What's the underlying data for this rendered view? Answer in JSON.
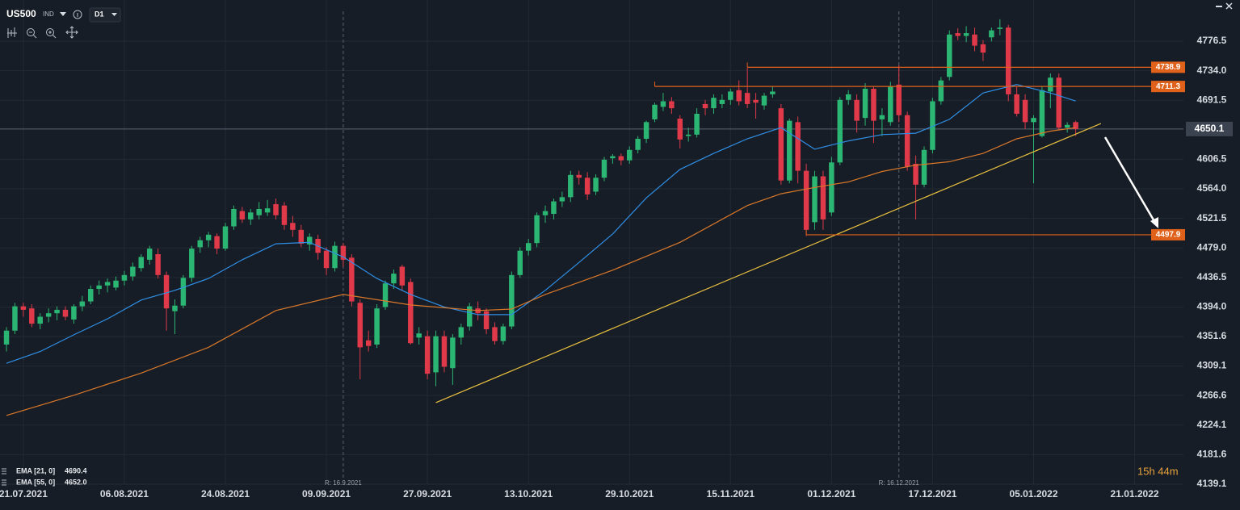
{
  "header": {
    "symbol": "US500",
    "kind": "IND",
    "timeframe": "D1"
  },
  "chart_data": {
    "type": "candlestick",
    "up_color": "#2bb673",
    "down_color": "#e0394a",
    "xlim": [
      -0.77,
      139.8
    ],
    "xticks": [
      {
        "value": 2,
        "label": "21.07.2021"
      },
      {
        "value": 14,
        "label": "06.08.2021"
      },
      {
        "value": 26,
        "label": "24.08.2021"
      },
      {
        "value": 38,
        "label": "09.09.2021"
      },
      {
        "value": 50,
        "label": "27.09.2021"
      },
      {
        "value": 62,
        "label": "13.10.2021"
      },
      {
        "value": 74,
        "label": "29.10.2021"
      },
      {
        "value": 86,
        "label": "15.11.2021"
      },
      {
        "value": 98,
        "label": "01.12.2021"
      },
      {
        "value": 110,
        "label": "17.12.2021"
      },
      {
        "value": 122,
        "label": "05.01.2022"
      },
      {
        "value": 134,
        "label": "21.01.2022"
      }
    ],
    "ylim": [
      4139.1,
      4835.7
    ],
    "yticks": [
      4776.5,
      {
        "value": 4734,
        "label": "4734.0"
      },
      4691.5,
      4606.5,
      {
        "value": 4564,
        "label": "4564.0"
      },
      4521.5,
      {
        "value": 4479,
        "label": "4479.0"
      },
      4436.5,
      {
        "value": 4394,
        "label": "4394.0"
      },
      4351.6,
      4309.1,
      4266.6,
      4224.1,
      4181.6,
      4139.1
    ],
    "grid": true,
    "candles": [
      [
        4340,
        4365,
        4330,
        4360
      ],
      [
        4360,
        4400,
        4355,
        4395
      ],
      [
        4395,
        4400,
        4380,
        4390
      ],
      [
        4392,
        4398,
        4365,
        4370
      ],
      [
        4370,
        4385,
        4362,
        4380
      ],
      [
        4380,
        4392,
        4372,
        4385
      ],
      [
        4385,
        4395,
        4375,
        4390
      ],
      [
        4390,
        4395,
        4375,
        4380
      ],
      [
        4376,
        4398,
        4370,
        4395
      ],
      [
        4395,
        4410,
        4388,
        4402
      ],
      [
        4402,
        4425,
        4398,
        4420
      ],
      [
        4420,
        4432,
        4412,
        4425
      ],
      [
        4425,
        4435,
        4415,
        4430
      ],
      [
        4422,
        4438,
        4418,
        4432
      ],
      [
        4432,
        4446,
        4425,
        4440
      ],
      [
        4438,
        4458,
        4432,
        4452
      ],
      [
        4450,
        4470,
        4445,
        4466
      ],
      [
        4462,
        4482,
        4455,
        4478
      ],
      [
        4470,
        4478,
        4435,
        4440
      ],
      [
        4440,
        4445,
        4360,
        4392
      ],
      [
        4388,
        4405,
        4355,
        4396
      ],
      [
        4396,
        4440,
        4392,
        4436
      ],
      [
        4436,
        4482,
        4430,
        4478
      ],
      [
        4480,
        4495,
        4472,
        4490
      ],
      [
        4490,
        4502,
        4480,
        4498
      ],
      [
        4496,
        4500,
        4470,
        4478
      ],
      [
        4478,
        4515,
        4475,
        4510
      ],
      [
        4510,
        4540,
        4505,
        4535
      ],
      [
        4532,
        4538,
        4515,
        4520
      ],
      [
        4520,
        4535,
        4512,
        4530
      ],
      [
        4526,
        4545,
        4520,
        4535
      ],
      [
        4530,
        4548,
        4525,
        4536
      ],
      [
        4542,
        4550,
        4520,
        4526
      ],
      [
        4540,
        4545,
        4505,
        4512
      ],
      [
        4515,
        4525,
        4495,
        4505
      ],
      [
        4505,
        4512,
        4480,
        4485
      ],
      [
        4484,
        4500,
        4475,
        4495
      ],
      [
        4492,
        4498,
        4462,
        4472
      ],
      [
        4475,
        4480,
        4440,
        4450
      ],
      [
        4450,
        4488,
        4445,
        4482
      ],
      [
        4482,
        4486,
        4452,
        4462
      ],
      [
        4465,
        4470,
        4395,
        4402
      ],
      [
        4400,
        4405,
        4290,
        4336
      ],
      [
        4346,
        4360,
        4330,
        4338
      ],
      [
        4340,
        4398,
        4335,
        4392
      ],
      [
        4394,
        4432,
        4390,
        4428
      ],
      [
        4428,
        4448,
        4420,
        4442
      ],
      [
        4452,
        4455,
        4418,
        4425
      ],
      [
        4430,
        4435,
        4340,
        4342
      ],
      [
        4350,
        4365,
        4340,
        4356
      ],
      [
        4352,
        4360,
        4290,
        4298
      ],
      [
        4300,
        4360,
        4280,
        4352
      ],
      [
        4352,
        4360,
        4300,
        4308
      ],
      [
        4306,
        4355,
        4282,
        4350
      ],
      [
        4350,
        4370,
        4340,
        4365
      ],
      [
        4366,
        4400,
        4360,
        4395
      ],
      [
        4392,
        4402,
        4375,
        4385
      ],
      [
        4388,
        4392,
        4355,
        4362
      ],
      [
        4365,
        4372,
        4340,
        4345
      ],
      [
        4345,
        4370,
        4340,
        4366
      ],
      [
        4366,
        4445,
        4362,
        4440
      ],
      [
        4440,
        4480,
        4436,
        4475
      ],
      [
        4475,
        4492,
        4468,
        4486
      ],
      [
        4486,
        4530,
        4480,
        4526
      ],
      [
        4526,
        4540,
        4515,
        4532
      ],
      [
        4528,
        4550,
        4520,
        4546
      ],
      [
        4546,
        4560,
        4538,
        4552
      ],
      [
        4552,
        4590,
        4545,
        4584
      ],
      [
        4584,
        4590,
        4570,
        4580
      ],
      [
        4580,
        4588,
        4548,
        4556
      ],
      [
        4560,
        4585,
        4555,
        4580
      ],
      [
        4580,
        4610,
        4575,
        4606
      ],
      [
        4608,
        4614,
        4600,
        4611
      ],
      [
        4611,
        4615,
        4598,
        4605
      ],
      [
        4605,
        4625,
        4600,
        4620
      ],
      [
        4620,
        4640,
        4615,
        4636
      ],
      [
        4636,
        4662,
        4630,
        4660
      ],
      [
        4664,
        4688,
        4660,
        4685
      ],
      [
        4682,
        4702,
        4676,
        4690
      ],
      [
        4690,
        4696,
        4672,
        4680
      ],
      [
        4665,
        4670,
        4622,
        4635
      ],
      [
        4640,
        4652,
        4632,
        4642
      ],
      [
        4642,
        4680,
        4638,
        4672
      ],
      [
        4686,
        4692,
        4670,
        4680
      ],
      [
        4680,
        4700,
        4672,
        4695
      ],
      [
        4686,
        4700,
        4680,
        4692
      ],
      [
        4692,
        4708,
        4685,
        4704
      ],
      [
        4706,
        4720,
        4684,
        4690
      ],
      [
        4702,
        4738,
        4680,
        4686
      ],
      [
        4692,
        4702,
        4665,
        4688
      ],
      [
        4684,
        4702,
        4678,
        4698
      ],
      [
        4700,
        4712,
        4695,
        4704
      ],
      [
        4680,
        4686,
        4570,
        4576
      ],
      [
        4576,
        4665,
        4572,
        4662
      ],
      [
        4660,
        4668,
        4572,
        4590
      ],
      [
        4590,
        4600,
        4496,
        4505
      ],
      [
        4516,
        4590,
        4505,
        4582
      ],
      [
        4582,
        4590,
        4505,
        4520
      ],
      [
        4530,
        4610,
        4525,
        4602
      ],
      [
        4602,
        4696,
        4598,
        4692
      ],
      [
        4692,
        4706,
        4685,
        4700
      ],
      [
        4692,
        4700,
        4645,
        4662
      ],
      [
        4666,
        4716,
        4655,
        4708
      ],
      [
        4708,
        4712,
        4630,
        4662
      ],
      [
        4664,
        4680,
        4640,
        4670
      ],
      [
        4660,
        4718,
        4655,
        4712
      ],
      [
        4714,
        4742,
        4660,
        4670
      ],
      [
        4670,
        4675,
        4590,
        4596
      ],
      [
        4600,
        4612,
        4520,
        4570
      ],
      [
        4570,
        4625,
        4566,
        4620
      ],
      [
        4620,
        4695,
        4615,
        4690
      ],
      [
        4690,
        4725,
        4685,
        4720
      ],
      [
        4725,
        4792,
        4720,
        4786
      ],
      [
        4788,
        4795,
        4778,
        4784
      ],
      [
        4784,
        4798,
        4775,
        4788
      ],
      [
        4786,
        4796,
        4762,
        4770
      ],
      [
        4772,
        4778,
        4748,
        4760
      ],
      [
        4782,
        4796,
        4776,
        4792
      ],
      [
        4794,
        4808,
        4785,
        4796
      ],
      [
        4796,
        4800,
        4690,
        4700
      ],
      [
        4700,
        4712,
        4668,
        4672
      ],
      [
        4692,
        4700,
        4650,
        4660
      ],
      [
        4660,
        4670,
        4572,
        4666
      ],
      [
        4640,
        4712,
        4638,
        4706
      ],
      [
        4704,
        4730,
        4680,
        4724
      ],
      [
        4724,
        4730,
        4648,
        4652
      ],
      [
        4652,
        4660,
        4645,
        4656
      ],
      [
        4660,
        4662,
        4640,
        4650
      ]
    ],
    "series": [
      {
        "name": "EMA [21, 0]",
        "color": "#2f8fe6",
        "legend_value": 4690.4,
        "x": [
          0,
          4,
          8,
          12,
          16,
          20,
          24,
          28,
          32,
          36,
          40,
          44,
          48,
          52,
          56,
          60,
          64,
          68,
          72,
          76,
          80,
          84,
          88,
          92,
          96,
          100,
          104,
          108,
          112,
          116,
          120,
          124,
          127
        ],
        "values": [
          4313,
          4330,
          4354,
          4377,
          4404,
          4418,
          4435,
          4462,
          4485,
          4487,
          4466,
          4435,
          4412,
          4394,
          4383,
          4383,
          4418,
          4458,
          4499,
          4551,
          4592,
          4615,
          4636,
          4652,
          4621,
          4633,
          4642,
          4644,
          4664,
          4702,
          4714,
          4702,
          4690.4
        ]
      },
      {
        "name": "EMA [55, 0]",
        "color": "#d9782a",
        "legend_value": {
          "value": 4652,
          "label": "4652.0"
        },
        "x": [
          0,
          8,
          16,
          24,
          32,
          40,
          48,
          56,
          60,
          64,
          72,
          80,
          88,
          92,
          96,
          100,
          104,
          108,
          112,
          116,
          120,
          124,
          127
        ],
        "values": [
          4238,
          4267,
          4299,
          4336,
          4389,
          4412,
          4397,
          4389,
          4391,
          4412,
          4447,
          4487,
          4540,
          4557,
          4566,
          4574,
          4589,
          4598,
          4603,
          4615,
          4636,
          4647,
          4652
        ]
      }
    ],
    "levels": [
      {
        "value": 4738.9,
        "start": 88
      },
      {
        "value": 4711.3,
        "start": 77
      },
      {
        "value": 4497.9,
        "start": 95
      }
    ],
    "level_color": "#e0611a",
    "trendline": {
      "color": "#e8c040",
      "x": [
        51,
        130
      ],
      "values": [
        4256.4,
        4658
      ]
    },
    "current_price": 4650.1,
    "markers": [
      {
        "x": 40,
        "label": "R: 16.9.2021"
      },
      {
        "x": 106,
        "label": "R: 16.12.2021"
      }
    ],
    "timer": "15h 44m"
  }
}
